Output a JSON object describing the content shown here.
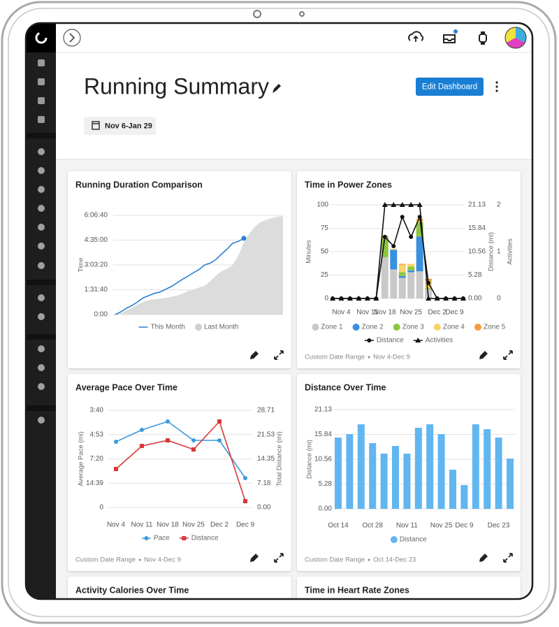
{
  "header": {
    "title": "Running Summary",
    "button": "Edit Dashboard",
    "date_range": "Nov 6-Jan 29"
  },
  "cards": [
    {
      "title": "Running Duration Comparison",
      "chart": {
        "type": "line",
        "ylabel": "Time",
        "ylim": [
          0,
          22000
        ],
        "yticks": [
          {
            "value": 0,
            "label": "0:00"
          },
          {
            "value": 5500,
            "label": "1:31:40"
          },
          {
            "value": 11000,
            "label": "3:03:20"
          },
          {
            "value": 16500,
            "label": "4:35:00"
          },
          {
            "value": 22000,
            "label": "6:06:40"
          }
        ],
        "series": [
          {
            "name": "This Month",
            "color": "#2a7fd4",
            "end_marker": true,
            "values": [
              0,
              600,
              1400,
              2000,
              2800,
              3700,
              4200,
              4700,
              5000,
              5600,
              6200,
              7000,
              7800,
              8500,
              9300,
              10000,
              11000,
              11400,
              12200,
              13400,
              14500,
              15800,
              16200,
              16900
            ]
          },
          {
            "name": "Last Month",
            "color": "#dcdcdc",
            "area": true,
            "values": [
              0,
              300,
              900,
              1500,
              2200,
              2800,
              3200,
              3400,
              3500,
              3700,
              3900,
              4200,
              4600,
              5200,
              5500,
              6000,
              6400,
              7400,
              8600,
              9600,
              10200,
              11000,
              13000,
              16000,
              18000,
              19500,
              20500,
              21000,
              21400,
              21700,
              21800
            ]
          }
        ]
      }
    },
    {
      "title": "Time in Power Zones",
      "footer": [
        "Custom Date Range",
        "Nov 4-Dec 9"
      ],
      "chart": {
        "type": "combo",
        "categories": [
          null,
          "Nov 4",
          null,
          null,
          "Nov 11",
          null,
          "Nov 18",
          null,
          null,
          "Nov 25",
          null,
          null,
          "Dec 2",
          null,
          "Dec 9",
          null
        ],
        "ylabel": "Minutes",
        "ylim": [
          0,
          100
        ],
        "yticks": [
          0,
          25,
          50,
          75,
          100
        ],
        "y2label": "Distance (mi)",
        "y2lim": [
          0,
          21.13
        ],
        "y2ticks": [
          {
            "value": 0,
            "label": "0.00"
          },
          5.28,
          10.56,
          15.84,
          21.13
        ],
        "y3label": "Activities",
        "y3lim": [
          0,
          2
        ],
        "y3ticks": [
          0,
          1,
          2
        ],
        "series": [
          {
            "name": "Zone 1",
            "color": "#c9c9c9",
            "kind": "bar",
            "values": [
              0,
              0,
              0,
              0,
              0,
              0,
              44,
              31,
              22,
              28,
              29,
              10,
              0,
              0,
              0,
              0
            ]
          },
          {
            "name": "Zone 2",
            "color": "#3a8fe0",
            "kind": "bar",
            "values": [
              0,
              0,
              0,
              0,
              0,
              0,
              0,
              21,
              2,
              2,
              37,
              0,
              0,
              0,
              0,
              0
            ]
          },
          {
            "name": "Zone 3",
            "color": "#8cc63f",
            "kind": "bar",
            "values": [
              0,
              0,
              0,
              0,
              0,
              0,
              22,
              0,
              4,
              4,
              15,
              1,
              0,
              0,
              0,
              0
            ]
          },
          {
            "name": "Zone 4",
            "color": "#f7d26a",
            "kind": "bar",
            "values": [
              0,
              0,
              0,
              0,
              0,
              0,
              1,
              1,
              8,
              3,
              3,
              8,
              0,
              0,
              0,
              0
            ]
          },
          {
            "name": "Zone 5",
            "color": "#f79a3e",
            "kind": "bar",
            "values": [
              0,
              0,
              0,
              0,
              0,
              0,
              0,
              0,
              1,
              0,
              1,
              2,
              0,
              0,
              0,
              0
            ]
          },
          {
            "name": "Distance",
            "color": "#111111",
            "kind": "line",
            "marker": "circle",
            "axis": "y2",
            "values": [
              0,
              0,
              0,
              0,
              0,
              0,
              13.9,
              11.8,
              18.4,
              13.9,
              18.4,
              3.5,
              0,
              0,
              0,
              0
            ]
          },
          {
            "name": "Activities",
            "color": "#111111",
            "kind": "line",
            "marker": "triangle",
            "axis": "y3",
            "values": [
              0,
              0,
              0,
              0,
              0,
              0,
              2,
              2,
              2,
              2,
              2,
              0,
              0,
              0,
              0,
              0
            ]
          }
        ]
      }
    },
    {
      "title": "Average Pace Over Time",
      "footer": [
        "Custom Date Range",
        "Nov 4-Dec 9"
      ],
      "chart": {
        "type": "line",
        "categories": [
          "Nov 4",
          "Nov 11",
          "Nov 18",
          "Nov 25",
          "Dec 2",
          "Dec 9"
        ],
        "ylabel": "Average Pace (mi)",
        "ylim": [
          0,
          16.36
        ],
        "yticks": [
          0,
          {
            "value": 4.09,
            "label": "14:39"
          },
          {
            "value": 8.18,
            "label": "7:20"
          },
          {
            "value": 12.27,
            "label": "4:53"
          },
          {
            "value": 16.36,
            "label": "3:40"
          }
        ],
        "y2label": "Total Distance (mi)",
        "y2lim": [
          0,
          28.71
        ],
        "y2ticks": [
          {
            "value": 0,
            "label": "0.00"
          },
          7.18,
          14.35,
          21.53,
          28.71
        ],
        "series": [
          {
            "name": "Pace",
            "color": "#3a9ad9",
            "marker": "circle",
            "values": [
              11.06,
              13.06,
              14.48,
              11.3,
              11.3,
              4.94
            ]
          },
          {
            "name": "Distance",
            "color": "#d9383a",
            "marker": "square",
            "axis": "y2",
            "values": [
              11.36,
              18.18,
              19.83,
              17.14,
              25.4,
              1.86
            ]
          }
        ]
      }
    },
    {
      "title": "Distance Over Time",
      "footer": [
        "Custom Date Range",
        "Oct 14-Dec 23"
      ],
      "chart": {
        "type": "bar",
        "categories": [
          "Oct 14",
          null,
          null,
          "Oct 28",
          null,
          null,
          "Nov 11",
          null,
          null,
          "Nov 25",
          null,
          "Dec 9",
          null,
          null,
          "Dec 23",
          null
        ],
        "ylabel": "Distance (mi)",
        "ylim": [
          0,
          21.13
        ],
        "yticks": [
          {
            "value": 0,
            "label": "0.00"
          },
          5.28,
          10.56,
          15.84,
          21.13
        ],
        "series": [
          {
            "name": "Distance",
            "color": "#62b6f0",
            "values": [
              15.18,
              15.92,
              18.0,
              13.99,
              11.76,
              13.39,
              11.76,
              17.26,
              18.0,
              15.92,
              8.33,
              5.06,
              18.0,
              16.96,
              15.18,
              10.71
            ]
          }
        ]
      }
    },
    {
      "title": "Activity Calories Over Time"
    },
    {
      "title": "Time in Heart Rate Zones"
    }
  ]
}
